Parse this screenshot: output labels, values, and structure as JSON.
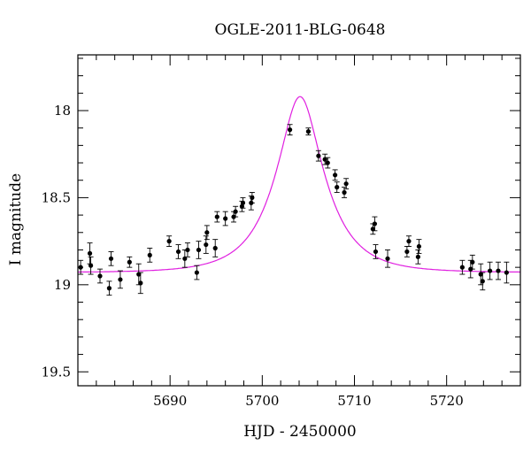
{
  "chart_data": {
    "type": "scatter",
    "title": "OGLE-2011-BLG-0648",
    "xlabel": "HJD - 2450000",
    "ylabel": "I magnitude",
    "xlim": [
      5680,
      5728
    ],
    "ylim": [
      19.58,
      17.68
    ],
    "y_inverted": true,
    "xticks": [
      5690,
      5700,
      5710,
      5720
    ],
    "yticks": [
      18,
      18.5,
      19,
      19.5
    ],
    "ytick_labels": [
      "18",
      "18.5",
      "19",
      "19.5"
    ],
    "grid": false,
    "colors": {
      "points": "#000000",
      "model": "#e020e0",
      "axes": "#000000"
    },
    "series": [
      {
        "kind": "points_with_errorbars",
        "points": [
          [
            5680.3,
            18.9,
            0.04
          ],
          [
            5681.3,
            18.82,
            0.06
          ],
          [
            5681.4,
            18.89,
            0.05
          ],
          [
            5682.4,
            18.95,
            0.04
          ],
          [
            5683.4,
            19.02,
            0.04
          ],
          [
            5683.6,
            18.85,
            0.04
          ],
          [
            5684.6,
            18.97,
            0.05
          ],
          [
            5685.6,
            18.87,
            0.03
          ],
          [
            5686.6,
            18.94,
            0.06
          ],
          [
            5686.8,
            18.99,
            0.06
          ],
          [
            5687.8,
            18.83,
            0.04
          ],
          [
            5689.9,
            18.75,
            0.03
          ],
          [
            5690.9,
            18.81,
            0.04
          ],
          [
            5691.6,
            18.85,
            0.05
          ],
          [
            5691.9,
            18.8,
            0.04
          ],
          [
            5692.9,
            18.93,
            0.04
          ],
          [
            5693.1,
            18.8,
            0.05
          ],
          [
            5693.9,
            18.77,
            0.05
          ],
          [
            5694.0,
            18.7,
            0.04
          ],
          [
            5694.9,
            18.79,
            0.05
          ],
          [
            5695.1,
            18.61,
            0.03
          ],
          [
            5696.0,
            18.62,
            0.04
          ],
          [
            5696.9,
            18.61,
            0.03
          ],
          [
            5697.1,
            18.58,
            0.03
          ],
          [
            5697.8,
            18.55,
            0.03
          ],
          [
            5697.9,
            18.53,
            0.03
          ],
          [
            5698.8,
            18.53,
            0.04
          ],
          [
            5698.9,
            18.5,
            0.03
          ],
          [
            5703.0,
            18.11,
            0.03
          ],
          [
            5705.0,
            18.12,
            0.02
          ],
          [
            5706.1,
            18.26,
            0.03
          ],
          [
            5706.8,
            18.28,
            0.03
          ],
          [
            5707.1,
            18.3,
            0.03
          ],
          [
            5707.9,
            18.37,
            0.03
          ],
          [
            5708.1,
            18.44,
            0.03
          ],
          [
            5708.9,
            18.47,
            0.03
          ],
          [
            5709.1,
            18.42,
            0.03
          ],
          [
            5712.0,
            18.68,
            0.03
          ],
          [
            5712.2,
            18.65,
            0.04
          ],
          [
            5712.3,
            18.81,
            0.04
          ],
          [
            5713.6,
            18.85,
            0.05
          ],
          [
            5715.7,
            18.81,
            0.03
          ],
          [
            5715.9,
            18.75,
            0.03
          ],
          [
            5716.9,
            18.84,
            0.04
          ],
          [
            5717.0,
            18.78,
            0.04
          ],
          [
            5721.7,
            18.9,
            0.04
          ],
          [
            5722.6,
            18.91,
            0.05
          ],
          [
            5722.8,
            18.87,
            0.04
          ],
          [
            5723.7,
            18.94,
            0.06
          ],
          [
            5723.9,
            18.98,
            0.05
          ],
          [
            5724.7,
            18.92,
            0.05
          ],
          [
            5725.6,
            18.92,
            0.05
          ],
          [
            5726.5,
            18.93,
            0.06
          ]
        ]
      },
      {
        "kind": "model_curve",
        "model": {
          "t0": 5704.1,
          "tE": 4.8,
          "u0": 0.42,
          "baseline": 18.93
        }
      }
    ]
  }
}
